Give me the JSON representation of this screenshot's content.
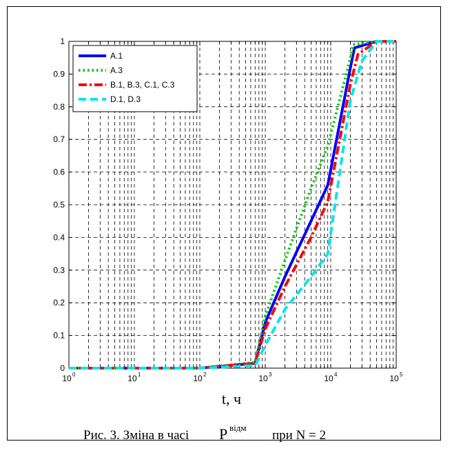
{
  "chart_data": {
    "type": "line",
    "x_scale": "log",
    "xlim": [
      1,
      100000
    ],
    "ylim": [
      0,
      1
    ],
    "xticks": [
      {
        "base": "10",
        "exp": "0",
        "value": 1
      },
      {
        "base": "10",
        "exp": "1",
        "value": 10
      },
      {
        "base": "10",
        "exp": "2",
        "value": 100
      },
      {
        "base": "10",
        "exp": "3",
        "value": 1000
      },
      {
        "base": "10",
        "exp": "4",
        "value": 10000
      },
      {
        "base": "10",
        "exp": "5",
        "value": 100000
      }
    ],
    "yticks": [
      "0",
      "0.1",
      "0.2",
      "0.3",
      "0.4",
      "0.5",
      "0.6",
      "0.7",
      "0.8",
      "0.9",
      "1"
    ],
    "xlabel": "t, ч",
    "grid": true,
    "legend_position": "top-left",
    "series": [
      {
        "name": "A.1",
        "color": "#0000ff",
        "dash": "solid",
        "x": [
          1,
          100,
          700,
          1000,
          2000,
          5000,
          9000,
          20000,
          23000,
          50000,
          100000
        ],
        "y": [
          0,
          0,
          0.015,
          0.14,
          0.28,
          0.45,
          0.56,
          0.92,
          0.98,
          1.0,
          1.0
        ]
      },
      {
        "name": "A.3",
        "color": "#00cc00",
        "dash": "dot",
        "x": [
          1,
          100,
          700,
          1000,
          2000,
          5000,
          9000,
          20000,
          22000,
          50000,
          100000
        ],
        "y": [
          0,
          0,
          0.018,
          0.16,
          0.33,
          0.55,
          0.68,
          0.95,
          0.99,
          1.0,
          1.0
        ]
      },
      {
        "name": "B.1, B.3, C.1, C.3",
        "color": "#ff0000",
        "dash": "dashdot",
        "x": [
          1,
          100,
          700,
          1000,
          2000,
          5000,
          9000,
          20000,
          26000,
          50000,
          100000
        ],
        "y": [
          0,
          0,
          0.015,
          0.12,
          0.25,
          0.4,
          0.51,
          0.87,
          0.96,
          1.0,
          1.0
        ]
      },
      {
        "name": "D.1, D.3",
        "color": "#00e5ee",
        "dash": "dash",
        "x": [
          1,
          100,
          700,
          1000,
          2000,
          5000,
          9000,
          20000,
          30000,
          50000,
          100000
        ],
        "y": [
          0,
          0,
          0.008,
          0.07,
          0.18,
          0.28,
          0.35,
          0.82,
          0.94,
          1.0,
          1.0
        ]
      }
    ]
  },
  "caption": {
    "prefix": "Рис. 3. Зміна в часі",
    "symbol": "P",
    "superscript": "відм",
    "suffix": "при  N = 2"
  }
}
